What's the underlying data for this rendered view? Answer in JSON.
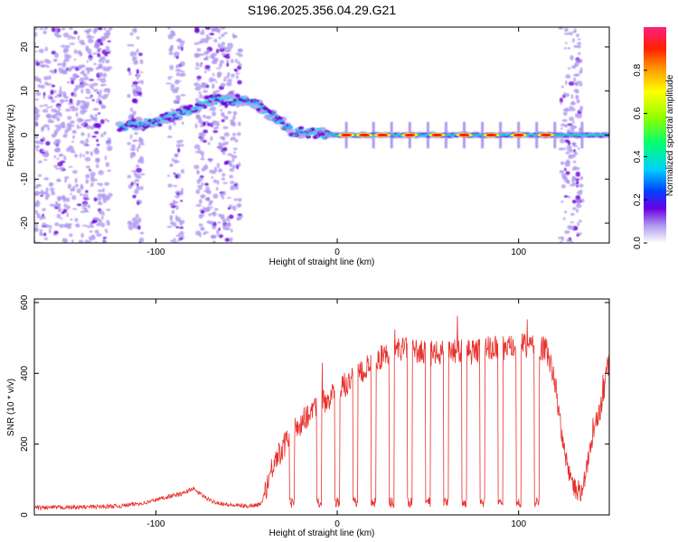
{
  "title": "S196.2025.356.04.29.G21",
  "chart_data": [
    {
      "type": "heatmap",
      "title": "S196.2025.356.04.29.G21",
      "xlabel": "Height of straight line (km)",
      "ylabel": "Frequency (Hz)",
      "xlim": [
        -167,
        150
      ],
      "ylim": [
        -24.5,
        24.5
      ],
      "xticks": [
        -100,
        0,
        100
      ],
      "xtick_labels": [
        "-100",
        "0",
        "100"
      ],
      "yticks": [
        -20,
        -10,
        0,
        10,
        20
      ],
      "ytick_labels": [
        "-20",
        "-10",
        "0",
        "10",
        "20"
      ],
      "ridge": {
        "description_points_x": [
          -120,
          -100,
          -80,
          -70,
          -55,
          -45,
          -35,
          -25,
          -15,
          -5,
          0,
          10,
          150
        ],
        "description_points_y": [
          2,
          3,
          6,
          8,
          8,
          7,
          4,
          1,
          0.5,
          0.3,
          0,
          0,
          0
        ],
        "peak_amplitude_x": [
          5,
          15,
          25,
          40,
          55,
          70,
          85,
          100,
          115
        ],
        "spur_x": [
          5,
          20,
          30,
          40,
          50,
          60,
          70,
          80,
          90,
          100,
          110,
          120,
          135
        ],
        "noise_bands_x": [
          [
            -167,
            -125
          ],
          [
            -115,
            -107
          ],
          [
            -93,
            -85
          ],
          [
            -78,
            -53
          ],
          [
            123,
            135
          ]
        ]
      },
      "colorbar": {
        "label": "Normalized spectral amplitude",
        "range": [
          0,
          1
        ],
        "ticks": [
          0,
          0.2,
          0.4,
          0.6,
          0.8
        ],
        "tick_labels": [
          "0.0",
          "0.2",
          "0.4",
          "0.6",
          "0.8"
        ],
        "colors": [
          "#ffffff",
          "#b09af0",
          "#6a00e0",
          "#0040ff",
          "#00d0ff",
          "#00ff70",
          "#90ff00",
          "#ffff00",
          "#ffa000",
          "#ff2000",
          "#ff2080"
        ]
      }
    },
    {
      "type": "line",
      "xlabel": "Height of straight line (km)",
      "ylabel": "SNR (10 * v/v)",
      "xlim": [
        -167,
        150
      ],
      "ylim": [
        0,
        610
      ],
      "xticks": [
        -100,
        0,
        100
      ],
      "xtick_labels": [
        "-100",
        "0",
        "100"
      ],
      "yticks": [
        0,
        200,
        400,
        600
      ],
      "ytick_labels": [
        "0",
        "200",
        "400",
        "600"
      ],
      "color": "#e8302c",
      "series": [
        {
          "name": "SNR",
          "x": [
            -167,
            -140,
            -120,
            -105,
            -95,
            -85,
            -80,
            -70,
            -60,
            -50,
            -42,
            -35,
            -25,
            -15,
            -5,
            5,
            15,
            25,
            35,
            45,
            55,
            65,
            75,
            85,
            95,
            105,
            115,
            120,
            125,
            130,
            135,
            140,
            145,
            150
          ],
          "values": [
            20,
            22,
            25,
            35,
            50,
            60,
            75,
            40,
            28,
            25,
            30,
            150,
            230,
            290,
            330,
            370,
            410,
            450,
            470,
            460,
            455,
            465,
            460,
            475,
            470,
            480,
            470,
            380,
            180,
            80,
            60,
            200,
            300,
            440
          ],
          "dips_x": [
            -25,
            -10,
            0,
            10,
            20,
            30,
            40,
            50,
            60,
            70,
            80,
            90,
            100,
            110
          ]
        }
      ]
    }
  ]
}
